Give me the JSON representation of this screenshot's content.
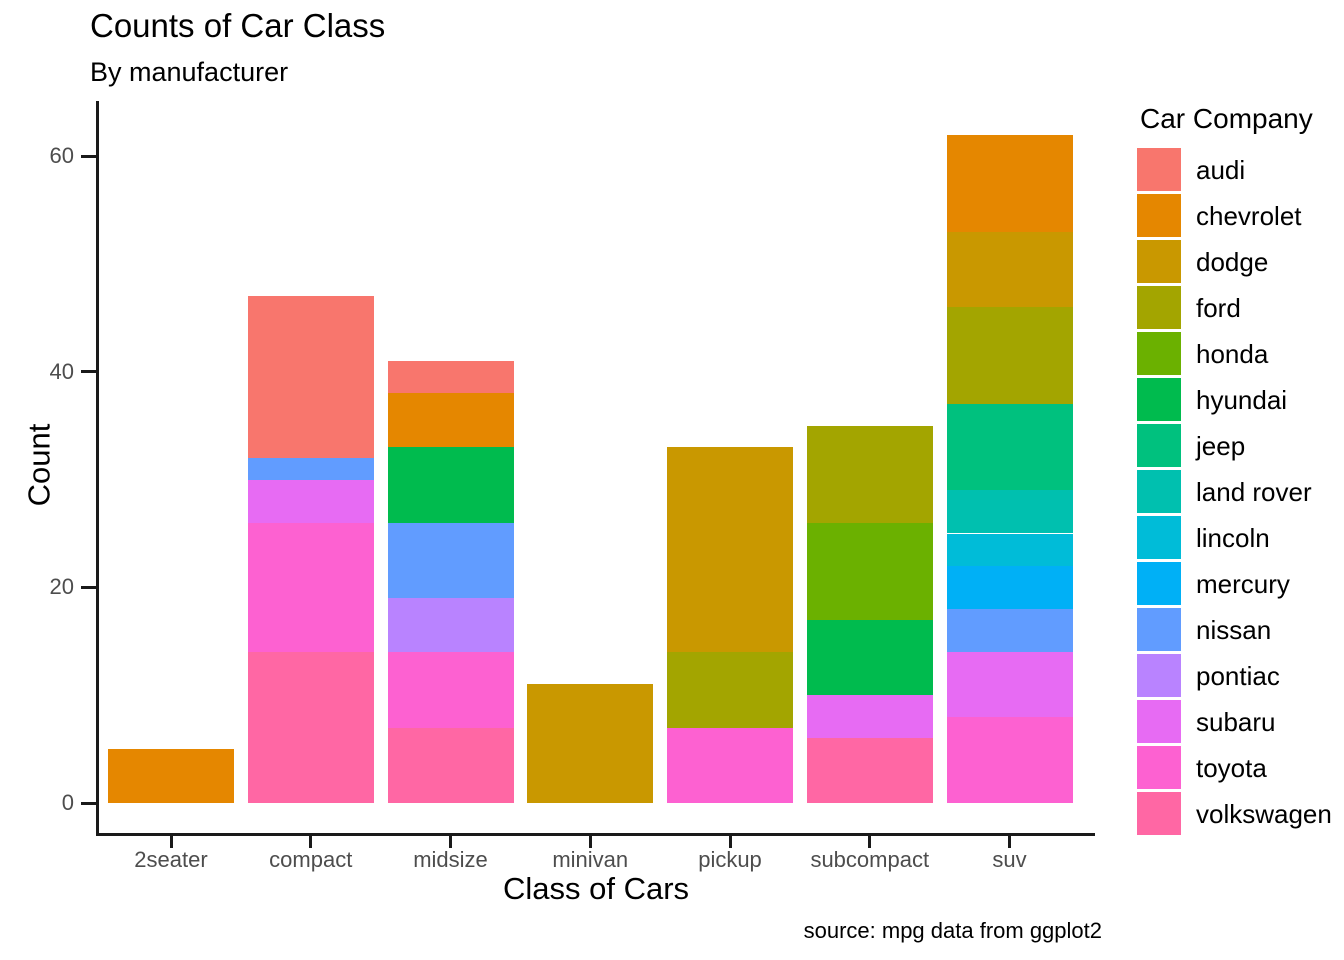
{
  "title": "Counts of Car Class",
  "subtitle": "By manufacturer",
  "caption": "source: mpg data from ggplot2",
  "x_axis_title": "Class of Cars",
  "y_axis_title": "Count",
  "legend": {
    "title": "Car Company"
  },
  "chart_data": {
    "type": "bar",
    "stacked": true,
    "title": "Counts of Car Class",
    "subtitle": "By manufacturer",
    "xlabel": "Class of Cars",
    "ylabel": "Count",
    "caption": "source: mpg data from ggplot2",
    "categories": [
      "2seater",
      "compact",
      "midsize",
      "minivan",
      "pickup",
      "subcompact",
      "suv"
    ],
    "series": [
      {
        "name": "audi",
        "color": "#F8766D",
        "values": [
          0,
          15,
          3,
          0,
          0,
          0,
          0
        ]
      },
      {
        "name": "chevrolet",
        "color": "#E58700",
        "values": [
          5,
          0,
          5,
          0,
          0,
          0,
          9
        ]
      },
      {
        "name": "dodge",
        "color": "#C99800",
        "values": [
          0,
          0,
          0,
          11,
          19,
          0,
          7
        ]
      },
      {
        "name": "ford",
        "color": "#A3A500",
        "values": [
          0,
          0,
          0,
          0,
          7,
          9,
          9
        ]
      },
      {
        "name": "honda",
        "color": "#6BB100",
        "values": [
          0,
          0,
          0,
          0,
          0,
          9,
          0
        ]
      },
      {
        "name": "hyundai",
        "color": "#00BB4E",
        "values": [
          0,
          0,
          7,
          0,
          0,
          7,
          0
        ]
      },
      {
        "name": "jeep",
        "color": "#00C17E",
        "values": [
          0,
          0,
          0,
          0,
          0,
          0,
          8
        ]
      },
      {
        "name": "land rover",
        "color": "#00C0AF",
        "values": [
          0,
          0,
          0,
          0,
          0,
          0,
          4
        ]
      },
      {
        "name": "lincoln",
        "color": "#00BCD8",
        "values": [
          0,
          0,
          0,
          0,
          0,
          0,
          3
        ]
      },
      {
        "name": "mercury",
        "color": "#00B0F6",
        "values": [
          0,
          0,
          0,
          0,
          0,
          0,
          4
        ]
      },
      {
        "name": "nissan",
        "color": "#619CFF",
        "values": [
          0,
          2,
          7,
          0,
          0,
          0,
          4
        ]
      },
      {
        "name": "pontiac",
        "color": "#B983FF",
        "values": [
          0,
          0,
          5,
          0,
          0,
          0,
          0
        ]
      },
      {
        "name": "subaru",
        "color": "#E76BF3",
        "values": [
          0,
          4,
          0,
          0,
          0,
          4,
          6
        ]
      },
      {
        "name": "toyota",
        "color": "#FD61D1",
        "values": [
          0,
          12,
          7,
          0,
          7,
          0,
          8
        ]
      },
      {
        "name": "volkswagen",
        "color": "#FF67A4",
        "values": [
          0,
          14,
          7,
          0,
          0,
          6,
          0
        ]
      }
    ],
    "stack_order": "first series at top of stack (ggplot2 default)",
    "totals": [
      5,
      47,
      41,
      11,
      33,
      35,
      62
    ],
    "y_ticks": [
      0,
      20,
      40,
      60
    ],
    "ylim": [
      0,
      65
    ],
    "grid": false,
    "legend_position": "right",
    "legend_title": "Car Company"
  }
}
